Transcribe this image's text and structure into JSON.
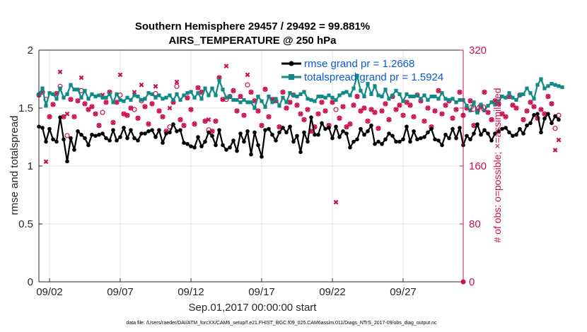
{
  "chart_data": {
    "type": "line",
    "title": "Southern Hemisphere 29457 / 29492 = 99.881%",
    "subtitle": "AIRS_TEMPERATURE @ 250 hPa",
    "xlabel": "Sep.01,2017 00:00:00 start",
    "ylabel": "rmse and totalspread",
    "y2label": "# of obs: o=possible; ×=assimilated",
    "footer": "data file: /Users/raeder/DAI/ATM_forcXX/CAM6_setup/f.e21.FHIST_BGC.f09_025.CAM6assim.011/Diags_NTrS_2017-09/obs_diag_output.nc",
    "x_ticks": [
      {
        "label": "09/02",
        "day": 2
      },
      {
        "label": "09/07",
        "day": 7
      },
      {
        "label": "09/12",
        "day": 12
      },
      {
        "label": "09/17",
        "day": 17
      },
      {
        "label": "09/22",
        "day": 22
      },
      {
        "label": "09/27",
        "day": 27
      }
    ],
    "xlim": [
      1.25,
      31.25
    ],
    "ylim": [
      0,
      2
    ],
    "y_ticks": [
      "0",
      "0.5",
      "1",
      "1.5",
      "2"
    ],
    "y2lim": [
      0,
      320
    ],
    "y2_ticks": [
      "0",
      "80",
      "160",
      "240",
      "320"
    ],
    "grid": true,
    "legend_position": "top-right",
    "series": [
      {
        "name": "rmse grand pr = 1.2668",
        "color": "#000000",
        "marker": "circle",
        "x_start": 1.25,
        "x_step": 0.25,
        "values": [
          1.34,
          1.33,
          1.21,
          1.32,
          1.23,
          1.21,
          1.42,
          1.23,
          1.04,
          1.24,
          1.14,
          1.3,
          1.27,
          1.24,
          1.18,
          1.27,
          1.26,
          1.27,
          1.28,
          1.24,
          1.22,
          1.31,
          1.22,
          1.25,
          1.33,
          1.24,
          1.31,
          1.24,
          1.22,
          1.28,
          1.28,
          1.3,
          1.31,
          1.25,
          1.31,
          1.2,
          1.28,
          1.29,
          1.36,
          1.3,
          1.31,
          1.2,
          1.19,
          1.17,
          1.16,
          1.25,
          1.17,
          1.21,
          1.29,
          1.26,
          1.18,
          1.31,
          1.18,
          1.14,
          1.16,
          1.22,
          1.13,
          1.28,
          1.21,
          1.3,
          1.1,
          1.29,
          1.18,
          1.08,
          1.31,
          1.32,
          1.27,
          1.22,
          1.29,
          1.33,
          1.29,
          1.34,
          1.21,
          1.26,
          1.12,
          1.29,
          1.21,
          1.42,
          1.27,
          1.27,
          1.37,
          1.32,
          1.33,
          1.24,
          1.34,
          1.25,
          1.3,
          1.28,
          1.16,
          1.21,
          1.23,
          1.32,
          1.27,
          1.3,
          1.35,
          1.19,
          1.21,
          1.19,
          1.23,
          1.28,
          1.26,
          1.21,
          1.21,
          1.23,
          1.34,
          1.21,
          1.3,
          1.23,
          1.24,
          1.25,
          1.29,
          1.32,
          1.23,
          1.22,
          1.18,
          1.27,
          1.24,
          1.32,
          1.24,
          1.33,
          1.18,
          1.26,
          1.23,
          1.28,
          1.36,
          1.27,
          1.31,
          1.28,
          1.22,
          1.28,
          1.3,
          1.32,
          1.33,
          1.29,
          1.26,
          1.27,
          1.32,
          1.28,
          1.35,
          1.37,
          1.44,
          1.45,
          1.29,
          1.41,
          1.45,
          1.37,
          1.43,
          1.4
        ]
      },
      {
        "name": "totalspread grand pr = 1.5924",
        "color": "#108a86",
        "marker": "square",
        "x_start": 1.25,
        "x_step": 0.25,
        "values": [
          1.62,
          1.67,
          1.52,
          1.63,
          1.62,
          1.58,
          1.67,
          1.59,
          1.62,
          1.7,
          1.66,
          1.66,
          1.59,
          1.65,
          1.58,
          1.62,
          1.6,
          1.61,
          1.59,
          1.59,
          1.62,
          1.55,
          1.62,
          1.57,
          1.56,
          1.59,
          1.57,
          1.61,
          1.6,
          1.57,
          1.58,
          1.63,
          1.62,
          1.59,
          1.61,
          1.58,
          1.59,
          1.61,
          1.57,
          1.62,
          1.57,
          1.61,
          1.63,
          1.64,
          1.59,
          1.63,
          1.58,
          1.67,
          1.61,
          1.67,
          1.61,
          1.74,
          1.66,
          1.59,
          1.6,
          1.57,
          1.57,
          1.55,
          1.57,
          1.55,
          1.55,
          1.5,
          1.6,
          1.56,
          1.51,
          1.6,
          1.55,
          1.58,
          1.52,
          1.59,
          1.55,
          1.63,
          1.61,
          1.6,
          1.62,
          1.64,
          1.58,
          1.57,
          1.56,
          1.6,
          1.6,
          1.59,
          1.61,
          1.59,
          1.57,
          1.61,
          1.63,
          1.64,
          1.61,
          1.67,
          1.78,
          1.65,
          1.6,
          1.71,
          1.62,
          1.69,
          1.61,
          1.6,
          1.66,
          1.58,
          1.61,
          1.65,
          1.62,
          1.56,
          1.62,
          1.6,
          1.6,
          1.61,
          1.58,
          1.61,
          1.57,
          1.6,
          1.6,
          1.58,
          1.63,
          1.58,
          1.57,
          1.58,
          1.55,
          1.57,
          1.57,
          1.52,
          1.48,
          1.55,
          1.46,
          1.53,
          1.48,
          1.52,
          1.55,
          1.53,
          1.56,
          1.6,
          1.59,
          1.63,
          1.59,
          1.57,
          1.61,
          1.62,
          1.67,
          1.63,
          1.58,
          1.7,
          1.75,
          1.67,
          1.69,
          1.71,
          1.7,
          1.69,
          1.68
        ]
      }
    ],
    "obs_possible": {
      "name": "possible",
      "symbol": "o",
      "color": "#c8104f",
      "x_start": 1.25,
      "x_step": 0.25,
      "values": [
        258,
        262,
        252,
        228,
        245,
        260,
        270,
        228,
        202,
        252,
        228,
        250,
        264,
        246,
        238,
        242,
        232,
        216,
        234,
        248,
        262,
        220,
        248,
        258,
        232,
        230,
        240,
        238,
        226,
        250,
        242,
        218,
        246,
        260,
        236,
        228,
        208,
        214,
        248,
        270,
        224,
        216,
        254,
        238,
        218,
        268,
        262,
        222,
        210,
        208,
        222,
        282,
        252,
        252,
        256,
        264,
        236,
        256,
        230,
        272,
        262,
        250,
        236,
        216,
        266,
        228,
        252,
        250,
        214,
        262,
        240,
        248,
        258,
        244,
        232,
        224,
        238,
        208,
        214,
        232,
        248,
        236,
        216,
        248,
        238,
        226,
        242,
        214,
        218,
        244,
        256,
        236,
        240,
        222,
        238,
        234,
        212,
        236,
        246,
        224,
        256,
        238,
        244,
        230,
        248,
        244,
        228,
        258,
        250,
        222,
        240,
        214,
        236,
        264,
        232,
        244,
        250,
        226,
        238,
        262,
        230,
        240,
        250,
        216,
        236,
        242,
        262,
        234,
        224,
        250,
        246,
        232,
        228,
        256,
        244,
        240,
        258,
        224,
        236,
        248,
        242,
        226,
        238,
        232,
        256,
        246,
        212,
        230
      ]
    },
    "obs_assimilated": {
      "name": "assimilated",
      "symbol": "x",
      "color": "#c8104f",
      "x_start": 1.25,
      "x_step": 0.25,
      "values": [
        258,
        262,
        166,
        228,
        245,
        260,
        290,
        228,
        232,
        252,
        228,
        250,
        282,
        246,
        238,
        242,
        232,
        216,
        258,
        248,
        262,
        220,
        248,
        286,
        232,
        230,
        240,
        262,
        226,
        272,
        242,
        218,
        246,
        270,
        236,
        228,
        208,
        240,
        248,
        276,
        224,
        216,
        254,
        238,
        218,
        268,
        262,
        222,
        224,
        208,
        222,
        282,
        252,
        298,
        256,
        264,
        236,
        256,
        230,
        286,
        262,
        250,
        236,
        216,
        266,
        228,
        252,
        250,
        214,
        262,
        240,
        248,
        258,
        244,
        232,
        224,
        238,
        208,
        214,
        232,
        248,
        236,
        216,
        248,
        110,
        226,
        242,
        214,
        218,
        244,
        256,
        236,
        240,
        222,
        238,
        234,
        212,
        236,
        246,
        224,
        256,
        238,
        244,
        230,
        248,
        244,
        228,
        258,
        250,
        222,
        240,
        214,
        236,
        264,
        232,
        244,
        250,
        226,
        238,
        262,
        230,
        240,
        250,
        216,
        236,
        242,
        262,
        234,
        224,
        250,
        246,
        232,
        228,
        256,
        244,
        240,
        258,
        224,
        236,
        248,
        242,
        226,
        238,
        232,
        256,
        246,
        182,
        196
      ]
    },
    "obs_marker_end": {
      "day": 31.25,
      "value": 0
    }
  }
}
